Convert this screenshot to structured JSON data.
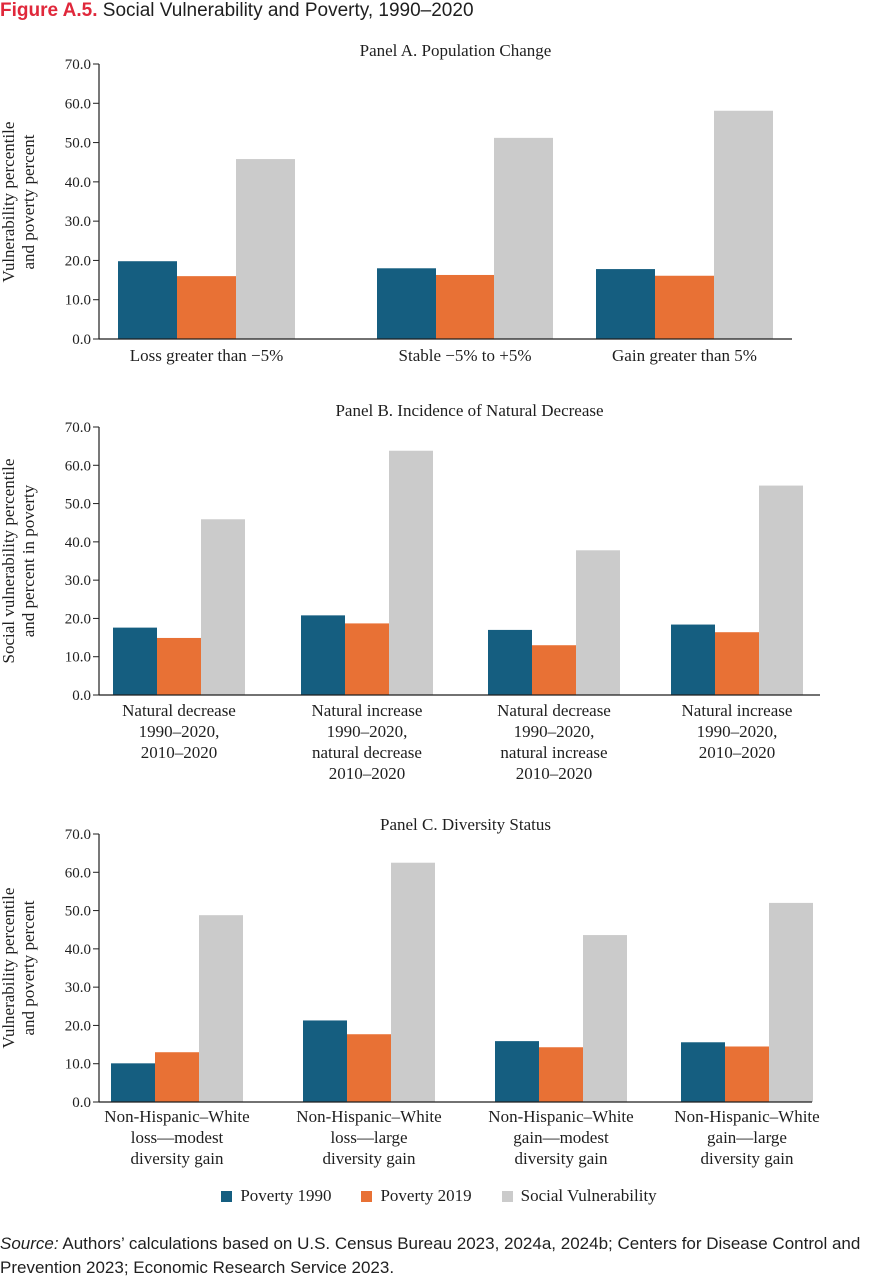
{
  "figure": {
    "number": "Figure A.5.",
    "title": "Social Vulnerability and Poverty, 1990–2020"
  },
  "colors": {
    "poverty_1990": "#155e80",
    "poverty_2019": "#e87135",
    "social_vulnerability": "#cbcbcb",
    "axis": "#1f1f1f"
  },
  "legend": {
    "items": [
      {
        "label": "Poverty 1990",
        "color": "#155e80"
      },
      {
        "label": "Poverty 2019",
        "color": "#e87135"
      },
      {
        "label": "Social Vulnerability",
        "color": "#cbcbcb"
      }
    ]
  },
  "source": {
    "label": "Source:",
    "text": "Authors’ calculations based on U.S. Census Bureau 2023, 2024a, 2024b; Centers for Disease Control and Prevention 2023; Economic Research Service 2023."
  },
  "chart_data": [
    {
      "type": "bar",
      "title": "Panel A. Population Change",
      "ylabel": [
        "Vulnerability percentile",
        "and poverty percent"
      ],
      "ylim": [
        0,
        70
      ],
      "yticks": [
        "0.0",
        "10.0",
        "20.0",
        "30.0",
        "40.0",
        "50.0",
        "60.0",
        "70.0"
      ],
      "categories": [
        [
          "Loss greater than −5%"
        ],
        [
          "Stable −5% to +5%"
        ],
        [
          "Gain greater than 5%"
        ]
      ],
      "series": [
        {
          "name": "Poverty 1990",
          "values": [
            19.8,
            18.0,
            17.8
          ]
        },
        {
          "name": "Poverty 2019",
          "values": [
            16.0,
            16.3,
            16.1
          ]
        },
        {
          "name": "Social Vulnerability",
          "values": [
            45.8,
            51.2,
            58.1
          ]
        }
      ]
    },
    {
      "type": "bar",
      "title": "Panel B. Incidence of Natural Decrease",
      "ylabel": [
        "Social vulnerability percentile",
        "and percent in poverty"
      ],
      "ylim": [
        0,
        70
      ],
      "yticks": [
        "0.0",
        "10.0",
        "20.0",
        "30.0",
        "40.0",
        "50.0",
        "60.0",
        "70.0"
      ],
      "categories": [
        [
          "Natural decrease",
          "1990–2020,",
          "2010–2020"
        ],
        [
          "Natural increase",
          "1990–2020,",
          "natural decrease",
          "2010–2020"
        ],
        [
          "Natural decrease",
          "1990–2020,",
          "natural increase",
          "2010–2020"
        ],
        [
          "Natural increase",
          "1990–2020,",
          "2010–2020"
        ]
      ],
      "series": [
        {
          "name": "Poverty 1990",
          "values": [
            17.6,
            20.8,
            17.0,
            18.4
          ]
        },
        {
          "name": "Poverty 2019",
          "values": [
            14.9,
            18.7,
            13.0,
            16.4
          ]
        },
        {
          "name": "Social Vulnerability",
          "values": [
            45.9,
            63.8,
            37.8,
            54.7
          ]
        }
      ]
    },
    {
      "type": "bar",
      "title": "Panel C. Diversity Status",
      "ylabel": [
        "Vulnerability percentile",
        "and poverty percent"
      ],
      "ylim": [
        0,
        70
      ],
      "yticks": [
        "0.0",
        "10.0",
        "20.0",
        "30.0",
        "40.0",
        "50.0",
        "60.0",
        "70.0"
      ],
      "categories": [
        [
          "Non-Hispanic–White",
          "loss—modest",
          "diversity gain"
        ],
        [
          "Non-Hispanic–White",
          "loss—large",
          "diversity gain"
        ],
        [
          "Non-Hispanic–White",
          "gain—modest",
          "diversity gain"
        ],
        [
          "Non-Hispanic–White",
          "gain—large",
          "diversity gain"
        ]
      ],
      "series": [
        {
          "name": "Poverty 1990",
          "values": [
            10.1,
            21.3,
            15.9,
            15.6
          ]
        },
        {
          "name": "Poverty 2019",
          "values": [
            13.0,
            17.7,
            14.3,
            14.5
          ]
        },
        {
          "name": "Social Vulnerability",
          "values": [
            48.8,
            62.5,
            43.6,
            52.0
          ]
        }
      ]
    }
  ]
}
